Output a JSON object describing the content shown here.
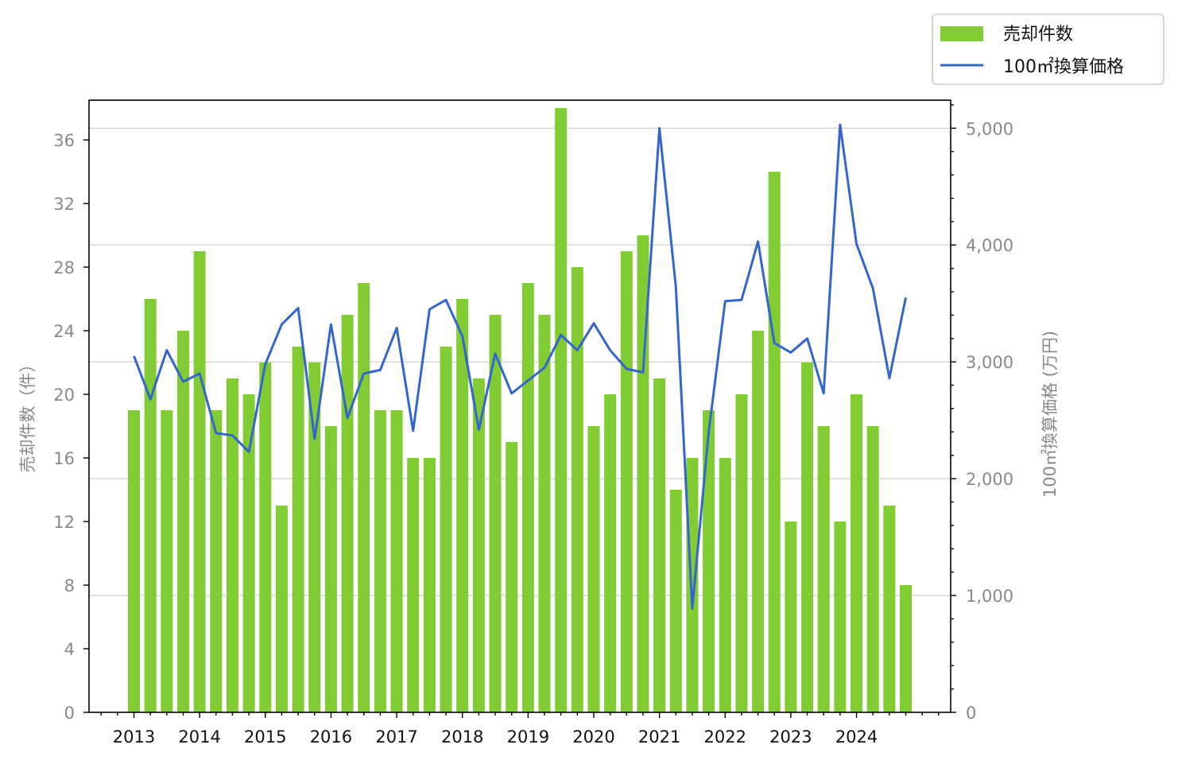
{
  "chart_data": {
    "type": "bar",
    "xlabel": "",
    "ylabel": "売却件数（件）",
    "y2label": "100㎡換算価格 (万円)",
    "ylim": [
      0,
      38.5
    ],
    "y2lim": [
      0,
      5240
    ],
    "yticks": [
      0,
      4,
      8,
      12,
      16,
      20,
      24,
      28,
      32,
      36
    ],
    "y2ticks": [
      "0",
      "1,000",
      "2,000",
      "3,000",
      "4,000",
      "5,000"
    ],
    "y2tick_values": [
      0,
      1000,
      2000,
      3000,
      4000,
      5000
    ],
    "year_labels": [
      "2013",
      "2014",
      "2015",
      "2016",
      "2017",
      "2018",
      "2019",
      "2020",
      "2021",
      "2022",
      "2023",
      "2024"
    ],
    "grid": true,
    "legend_position": "top-right",
    "categories": [
      "2013Q1",
      "2013Q2",
      "2013Q3",
      "2013Q4",
      "2014Q1",
      "2014Q2",
      "2014Q3",
      "2014Q4",
      "2015Q1",
      "2015Q2",
      "2015Q3",
      "2015Q4",
      "2016Q1",
      "2016Q2",
      "2016Q3",
      "2016Q4",
      "2017Q1",
      "2017Q2",
      "2017Q3",
      "2017Q4",
      "2018Q1",
      "2018Q2",
      "2018Q3",
      "2018Q4",
      "2019Q1",
      "2019Q2",
      "2019Q3",
      "2019Q4",
      "2020Q1",
      "2020Q2",
      "2020Q3",
      "2020Q4",
      "2021Q1",
      "2021Q2",
      "2021Q3",
      "2021Q4",
      "2022Q1",
      "2022Q2",
      "2022Q3",
      "2022Q4",
      "2023Q1",
      "2023Q2",
      "2023Q3",
      "2023Q4",
      "2024Q1",
      "2024Q2",
      "2024Q3",
      "2024Q4"
    ],
    "series": [
      {
        "name": "売却件数",
        "type": "bar",
        "axis": "left",
        "color": "#82cc33",
        "values": [
          19,
          26,
          19,
          24,
          29,
          19,
          21,
          20,
          22,
          13,
          23,
          22,
          18,
          25,
          27,
          19,
          19,
          16,
          16,
          23,
          26,
          21,
          25,
          17,
          27,
          25,
          38,
          28,
          18,
          20,
          29,
          30,
          21,
          14,
          16,
          19,
          16,
          20,
          24,
          34,
          12,
          22,
          18,
          12,
          20,
          18,
          13,
          8
        ]
      },
      {
        "name": "100㎡換算価格",
        "type": "line",
        "axis": "right",
        "color": "#3366cc",
        "values": [
          3050,
          2680,
          3100,
          2830,
          2900,
          2390,
          2370,
          2230,
          2980,
          3320,
          3460,
          2340,
          3320,
          2520,
          2900,
          2930,
          3290,
          2410,
          3450,
          3530,
          3220,
          2420,
          3070,
          2730,
          2840,
          2950,
          3230,
          3100,
          3330,
          3100,
          2940,
          2910,
          5000,
          3640,
          890,
          2400,
          3520,
          3530,
          4030,
          3160,
          3080,
          3200,
          2730,
          5030,
          4010,
          3630,
          2860,
          3550
        ]
      }
    ]
  }
}
